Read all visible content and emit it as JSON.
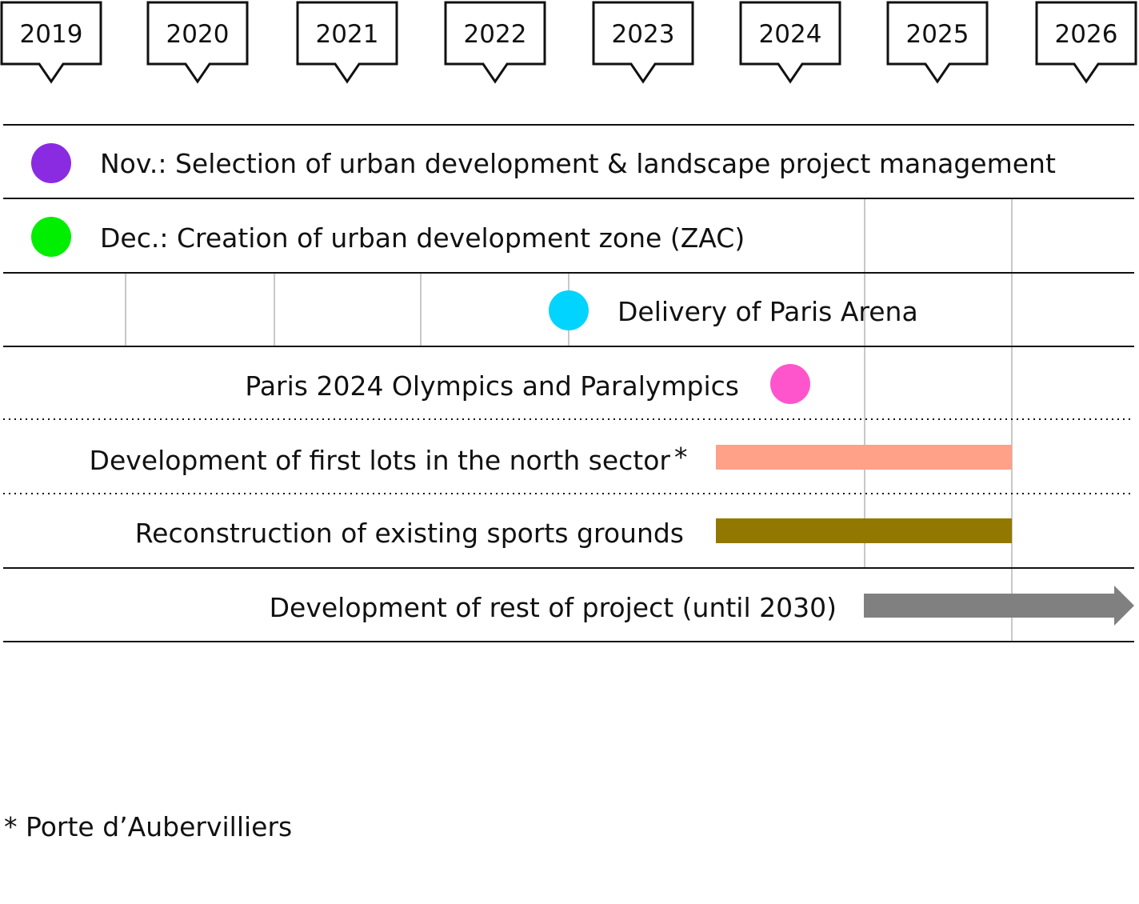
{
  "years": [
    "2019",
    "2020",
    "2021",
    "2022",
    "2023",
    "2024",
    "2025",
    "2026"
  ],
  "rows": [
    {
      "label": "Nov.: Selection of urban development & landscape project management",
      "kind": "point",
      "year": "2019",
      "color": "#8a2be2"
    },
    {
      "label": "Dec.: Creation of urban development zone (ZAC)",
      "kind": "point",
      "year": "2019",
      "color": "#00ee00"
    },
    {
      "label": "Delivery of Paris Arena",
      "kind": "point",
      "year": "2023",
      "color": "#00d4ff"
    },
    {
      "label": "Paris 2024 Olympics and Paralympics",
      "kind": "point",
      "year": "2024",
      "color": "#ff55cc"
    },
    {
      "label": "Development of first lots in the north sector",
      "marker": "*",
      "kind": "bar",
      "start": "2024",
      "end": "2026",
      "color": "#ffa088"
    },
    {
      "label": "Reconstruction of existing sports grounds",
      "kind": "bar",
      "start": "2024",
      "end": "2026",
      "color": "#937800"
    },
    {
      "label": "Development of rest of project (until 2030)",
      "kind": "arrow",
      "start": "2025",
      "end": "2030",
      "color": "#808080"
    }
  ],
  "footnote": "* Porte d’Aubervilliers"
}
